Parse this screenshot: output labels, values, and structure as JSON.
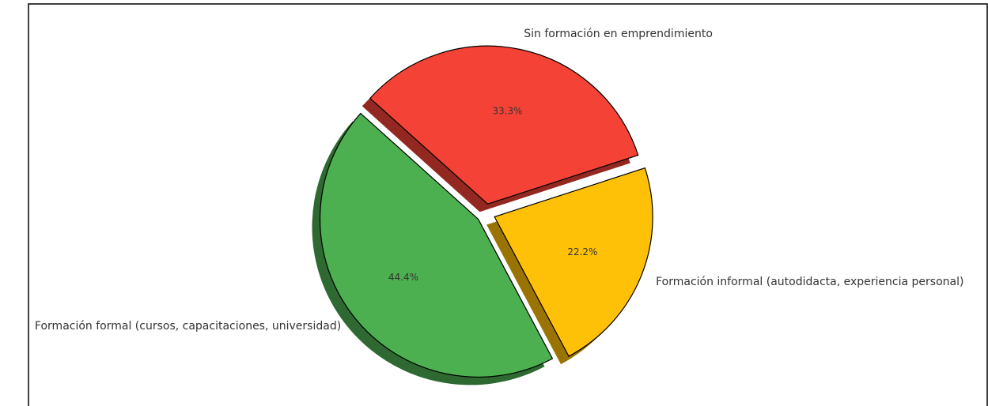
{
  "chart_data": {
    "type": "pie",
    "categories": [
      "Formación formal (cursos, capacitaciones, universidad)",
      "Formación informal (autodidacta, experiencia personal)",
      "Sin formación en emprendimiento"
    ],
    "values": [
      44.4,
      22.2,
      33.3
    ],
    "value_labels": [
      "44.4%",
      "22.2%",
      "33.3%"
    ],
    "colors": [
      "#4caf50",
      "#ffc107",
      "#f44336"
    ],
    "shadow": true
  }
}
